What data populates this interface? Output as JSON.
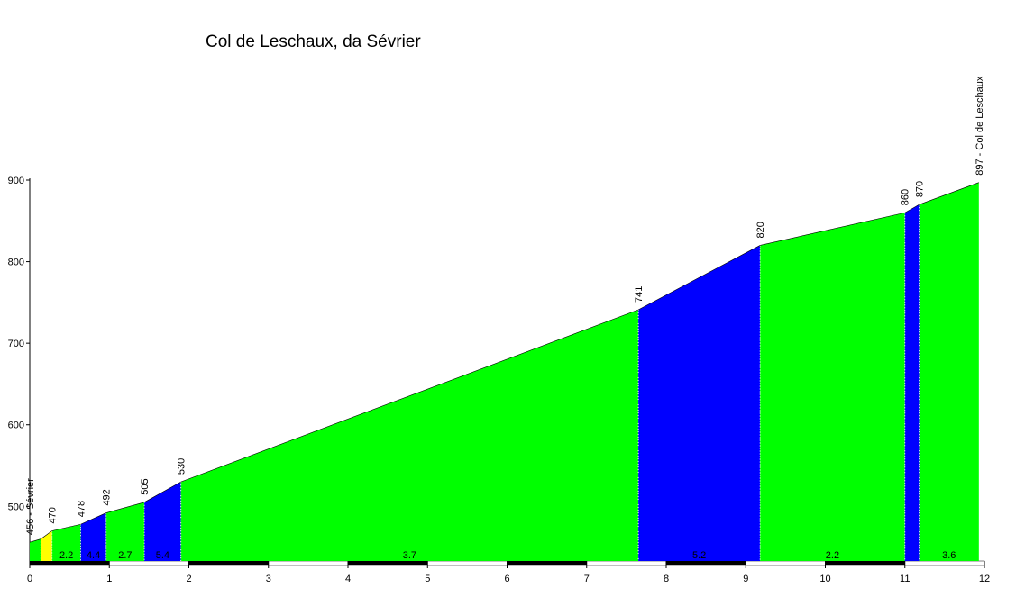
{
  "chart_data": {
    "type": "profile",
    "title": "Col de Leschaux, da Sévrier",
    "x": [
      0,
      0.14,
      0.28,
      0.64,
      0.96,
      1.44,
      1.9,
      7.65,
      9.18,
      11.0,
      11.18,
      11.93
    ],
    "values": [
      456,
      460,
      470,
      478,
      492,
      505,
      530,
      741,
      820,
      860,
      870,
      897
    ],
    "value_labels": [
      "456 - Sévrier",
      null,
      "470",
      "478",
      "492",
      "505",
      "530",
      "741",
      "820",
      "860",
      "870",
      "897 - Col de Leschaux"
    ],
    "segment_colors": [
      "#00ff00",
      "#ffff00",
      "#00ff00",
      "#0000ff",
      "#00ff00",
      "#0000ff",
      "#00ff00",
      "#0000ff",
      "#00ff00",
      "#0000ff",
      "#00ff00"
    ],
    "segment_grades": [
      null,
      null,
      2.2,
      4.4,
      2.7,
      5.4,
      3.7,
      5.2,
      2.2,
      null,
      3.6
    ],
    "xlim": [
      0,
      12
    ],
    "xticks": [
      0,
      1,
      2,
      3,
      4,
      5,
      6,
      7,
      8,
      9,
      10,
      11,
      12
    ],
    "ylim": [
      433,
      900
    ],
    "yticks": [
      500,
      600,
      700,
      800,
      900
    ]
  }
}
